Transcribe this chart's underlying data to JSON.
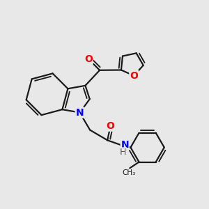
{
  "background_color": "#e8e8e8",
  "bond_color": "#1a1a1a",
  "bond_width": 1.6,
  "atom_colors": {
    "O": "#ff0000",
    "N": "#0000ff",
    "C": "#1a1a1a"
  },
  "font_size_atom": 10
}
